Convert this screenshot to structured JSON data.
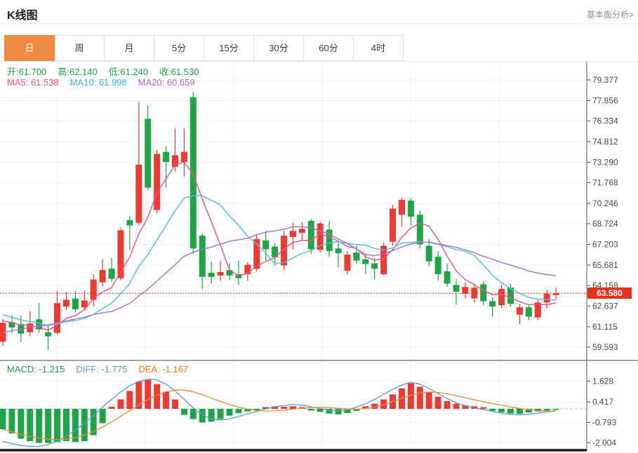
{
  "header": {
    "title": "K线图",
    "link": "基本面分析>"
  },
  "tabs": [
    {
      "name": "day",
      "label": "日",
      "selected": true
    },
    {
      "name": "week",
      "label": "周",
      "selected": false
    },
    {
      "name": "month",
      "label": "月",
      "selected": false
    },
    {
      "name": "5min",
      "label": "5分",
      "selected": false
    },
    {
      "name": "15min",
      "label": "15分",
      "selected": false
    },
    {
      "name": "30min",
      "label": "30分",
      "selected": false
    },
    {
      "name": "60min",
      "label": "60分",
      "selected": false
    },
    {
      "name": "4hour",
      "label": "4时",
      "selected": false
    }
  ],
  "ohlc_readout": [
    {
      "key": "open",
      "label": "开",
      "value": "61.700"
    },
    {
      "key": "high",
      "label": "高",
      "value": "62.140"
    },
    {
      "key": "low",
      "label": "低",
      "value": "61.240"
    },
    {
      "key": "close",
      "label": "收",
      "value": "61.530"
    }
  ],
  "ma_readout": [
    {
      "key": "ma5",
      "label": "MA5",
      "value": "61.538",
      "color": "#f0508c"
    },
    {
      "key": "ma10",
      "label": "MA10",
      "value": "61.998",
      "color": "#35b8dc"
    },
    {
      "key": "ma20",
      "label": "MA20",
      "value": "60.659",
      "color": "#b665ce"
    }
  ],
  "macd_readout": [
    {
      "key": "macd",
      "label": "MACD",
      "value": "-1.215",
      "color": "#1ea34b"
    },
    {
      "key": "diff",
      "label": "DIFF",
      "value": "-1.775",
      "color": "#5b9bd5"
    },
    {
      "key": "dea",
      "label": "DEA",
      "value": "-1.167",
      "color": "#ef7d2e"
    }
  ],
  "price_badge": "63.580",
  "colors": {
    "up": "#ee3a31",
    "down": "#1fa446",
    "ma5": "#f0508c",
    "ma10": "#49c1e0",
    "ma20": "#a873c8",
    "diff_line": "#5b9bd5",
    "dea_line": "#ef8a3a",
    "grid": "#f0f0f0",
    "axis": "#555555",
    "tick_text": "#4a4a4a",
    "price_line": "#e03030",
    "badge_bg": "#e5321e",
    "zero_dash": "#9fc5e8",
    "separator": "#444444",
    "bottom_bar": "#1a1a1a",
    "tab_accent": "#ef8a43"
  },
  "chart_data": {
    "type": "candlestick",
    "title": "K线图 日K (daily candles with MA5/MA10/MA20 and MACD)",
    "main_panel": {
      "y_ticks": [
        79.377,
        77.856,
        76.334,
        74.812,
        73.29,
        71.768,
        70.246,
        68.724,
        67.203,
        65.681,
        64.159,
        62.637,
        61.115,
        59.593
      ],
      "current_price": 63.58,
      "candles_ohlc": [
        [
          60.0,
          61.7,
          59.7,
          61.4
        ],
        [
          61.45,
          61.95,
          60.6,
          61.05
        ],
        [
          61.3,
          61.9,
          59.95,
          60.6
        ],
        [
          60.7,
          62.25,
          60.4,
          61.35
        ],
        [
          61.65,
          62.85,
          60.65,
          60.9
        ],
        [
          60.7,
          61.3,
          59.4,
          60.4
        ],
        [
          60.65,
          63.75,
          60.55,
          62.85
        ],
        [
          62.6,
          63.65,
          62.35,
          63.1
        ],
        [
          63.2,
          63.75,
          62.2,
          62.4
        ],
        [
          62.55,
          63.8,
          62.3,
          63.05
        ],
        [
          63.1,
          65.0,
          62.6,
          64.6
        ],
        [
          64.4,
          66.1,
          64.1,
          65.3
        ],
        [
          65.4,
          66.2,
          64.4,
          64.65
        ],
        [
          64.7,
          68.45,
          64.55,
          68.25
        ],
        [
          69.0,
          69.3,
          66.8,
          68.6
        ],
        [
          68.8,
          77.7,
          68.6,
          73.1
        ],
        [
          76.5,
          77.5,
          71.2,
          71.4
        ],
        [
          69.75,
          74.2,
          69.5,
          73.9
        ],
        [
          74.05,
          74.5,
          71.4,
          73.3
        ],
        [
          72.95,
          75.8,
          72.6,
          73.8
        ],
        [
          73.3,
          75.8,
          72.25,
          74.05
        ],
        [
          78.1,
          78.5,
          66.5,
          66.9
        ],
        [
          67.85,
          68.0,
          63.9,
          64.8
        ],
        [
          65.1,
          65.9,
          64.3,
          64.8
        ],
        [
          64.9,
          66.0,
          64.5,
          65.15
        ],
        [
          65.3,
          65.8,
          64.55,
          64.9
        ],
        [
          65.0,
          66.0,
          64.2,
          64.7
        ],
        [
          65.0,
          65.9,
          64.5,
          65.7
        ],
        [
          65.4,
          67.9,
          65.2,
          67.6
        ],
        [
          67.5,
          68.2,
          66.0,
          66.85
        ],
        [
          67.05,
          67.3,
          65.6,
          66.25
        ],
        [
          65.65,
          68.2,
          65.3,
          67.85
        ],
        [
          67.75,
          68.8,
          66.85,
          68.2
        ],
        [
          68.05,
          68.85,
          67.5,
          68.35
        ],
        [
          68.95,
          69.1,
          66.5,
          66.85
        ],
        [
          66.8,
          68.9,
          66.6,
          68.75
        ],
        [
          68.3,
          68.95,
          66.3,
          66.7
        ],
        [
          66.9,
          67.5,
          65.5,
          66.55
        ],
        [
          65.25,
          66.7,
          65.0,
          66.45
        ],
        [
          66.6,
          67.15,
          65.75,
          66.0
        ],
        [
          66.1,
          66.5,
          65.0,
          65.75
        ],
        [
          65.8,
          66.2,
          64.6,
          65.4
        ],
        [
          65.0,
          67.3,
          64.9,
          67.1
        ],
        [
          67.4,
          70.15,
          67.1,
          69.85
        ],
        [
          69.4,
          70.65,
          68.55,
          70.5
        ],
        [
          70.45,
          70.6,
          68.6,
          69.25
        ],
        [
          69.4,
          69.7,
          66.9,
          67.2
        ],
        [
          67.1,
          67.6,
          65.6,
          65.95
        ],
        [
          66.3,
          66.7,
          64.5,
          65.0
        ],
        [
          65.2,
          65.8,
          64.05,
          64.3
        ],
        [
          64.2,
          64.65,
          62.75,
          63.7
        ],
        [
          63.55,
          64.4,
          63.2,
          64.05
        ],
        [
          63.2,
          64.3,
          62.9,
          64.0
        ],
        [
          64.25,
          64.45,
          62.7,
          63.0
        ],
        [
          63.0,
          63.3,
          61.85,
          62.6
        ],
        [
          62.7,
          64.2,
          62.5,
          63.9
        ],
        [
          64.0,
          64.3,
          62.6,
          62.8
        ],
        [
          62.0,
          62.8,
          61.3,
          62.55
        ],
        [
          62.55,
          62.7,
          61.6,
          61.85
        ],
        [
          61.8,
          63.1,
          61.6,
          62.9
        ],
        [
          62.9,
          63.85,
          62.45,
          63.55
        ],
        [
          63.45,
          64.0,
          63.15,
          63.58
        ]
      ],
      "ma_periods": [
        5,
        10,
        20
      ],
      "ma_seed_closes_prehistory": [
        58.0,
        58.3,
        58.6,
        58.9,
        59.2,
        59.5,
        59.8,
        60.0,
        60.3,
        60.6,
        62.9,
        62.7,
        62.4,
        62.2,
        62.09,
        61.7,
        61.5,
        61.4,
        61.69
      ]
    },
    "macd_panel": {
      "y_ticks": [
        1.628,
        0.417,
        -0.793,
        -2.004
      ],
      "histogram": [
        -1.2,
        -1.45,
        -1.75,
        -1.9,
        -2.0,
        -2.0,
        -1.95,
        -1.9,
        -1.95,
        -1.9,
        -1.55,
        -0.85,
        0.12,
        0.55,
        1.05,
        1.6,
        1.7,
        1.45,
        1.0,
        0.55,
        -0.35,
        -0.6,
        -0.8,
        -0.75,
        -0.6,
        -0.4,
        -0.25,
        -0.15,
        -0.1,
        0.1,
        0.15,
        0.12,
        0.15,
        0.1,
        -0.1,
        -0.18,
        -0.28,
        -0.33,
        -0.25,
        -0.12,
        0.15,
        0.3,
        0.55,
        0.85,
        1.2,
        1.5,
        1.3,
        1.0,
        0.7,
        0.45,
        0.3,
        0.2,
        0.15,
        0.1,
        -0.12,
        -0.2,
        -0.28,
        -0.3,
        -0.22,
        -0.15,
        -0.1,
        -0.06
      ],
      "diff_line": [
        -1.9,
        -2.05,
        -2.15,
        -2.2,
        -2.2,
        -2.1,
        -1.9,
        -1.6,
        -1.25,
        -0.85,
        -0.4,
        0.1,
        0.55,
        1.0,
        1.35,
        1.6,
        1.75,
        1.7,
        1.45,
        1.05,
        0.55,
        0.05,
        -0.35,
        -0.6,
        -0.65,
        -0.6,
        -0.45,
        -0.3,
        -0.15,
        0.0,
        0.12,
        0.2,
        0.25,
        0.22,
        0.12,
        0.02,
        -0.08,
        -0.12,
        -0.05,
        0.1,
        0.3,
        0.55,
        0.85,
        1.15,
        1.4,
        1.55,
        1.45,
        1.2,
        0.9,
        0.6,
        0.35,
        0.18,
        0.05,
        -0.05,
        -0.15,
        -0.25,
        -0.33,
        -0.36,
        -0.32,
        -0.25,
        -0.18,
        -0.12
      ],
      "dea_line": [
        -1.2,
        -1.35,
        -1.5,
        -1.62,
        -1.72,
        -1.78,
        -1.8,
        -1.77,
        -1.68,
        -1.53,
        -1.33,
        -1.07,
        -0.77,
        -0.44,
        -0.1,
        0.24,
        0.55,
        0.82,
        1.0,
        1.1,
        1.1,
        1.0,
        0.83,
        0.63,
        0.43,
        0.25,
        0.1,
        -0.02,
        -0.1,
        -0.13,
        -0.12,
        -0.08,
        -0.02,
        0.04,
        0.08,
        0.09,
        0.07,
        0.03,
        -0.01,
        -0.02,
        0.02,
        0.1,
        0.24,
        0.42,
        0.62,
        0.8,
        0.93,
        0.98,
        0.96,
        0.88,
        0.77,
        0.65,
        0.53,
        0.42,
        0.31,
        0.21,
        0.11,
        0.02,
        -0.05,
        -0.1,
        -0.13,
        -0.14
      ]
    }
  }
}
